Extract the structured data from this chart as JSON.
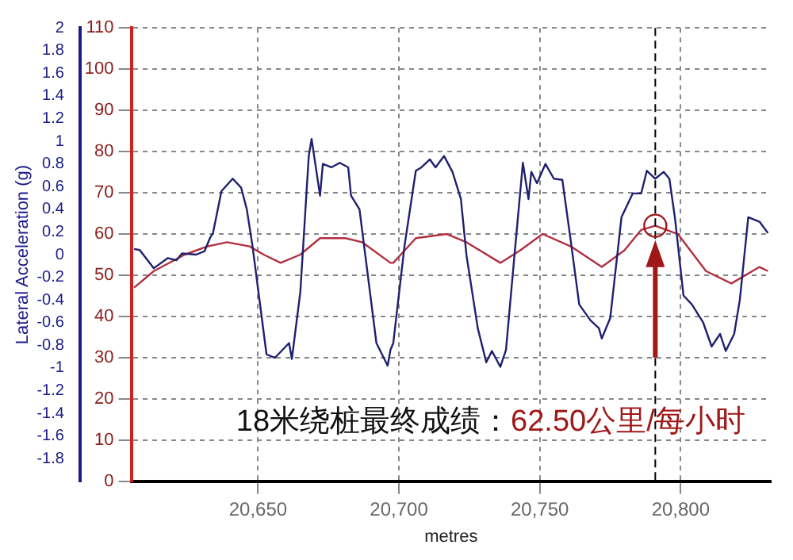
{
  "chart_data": {
    "type": "line",
    "xlabel": "metres",
    "ylabel": "Lateral Acceleration (g)",
    "xlim": [
      20605,
      20832
    ],
    "xticks": [
      {
        "value": 20650,
        "label": "20,650"
      },
      {
        "value": 20700,
        "label": "20,700"
      },
      {
        "value": 20750,
        "label": "20,750"
      },
      {
        "value": 20800,
        "label": "20,800"
      }
    ],
    "ylim": [
      -2,
      2
    ],
    "yticks": [
      -1.8,
      -1.6,
      -1.4,
      -1.2,
      -1,
      -0.8,
      -0.6,
      -0.4,
      -0.2,
      0,
      0.2,
      0.4,
      0.6,
      0.8,
      1,
      1.2,
      1.4,
      1.6,
      1.8,
      2
    ],
    "y2lim": [
      0,
      110
    ],
    "y2ticks": [
      0,
      10,
      20,
      30,
      40,
      50,
      60,
      70,
      80,
      90,
      100,
      110
    ],
    "grid": true,
    "legend": false,
    "marker": "none",
    "line_style": "solid",
    "series": [
      {
        "color": "#202070",
        "x": [
          20606,
          20608,
          20613,
          20618,
          20621,
          20623,
          20628,
          20631,
          20633,
          20634,
          20637,
          20641,
          20644,
          20646,
          20648,
          20653,
          20656,
          20661,
          20662,
          20665,
          20668,
          20669,
          20672,
          20673,
          20676,
          20679,
          20682,
          20683,
          20686,
          20689,
          20692,
          20694,
          20696,
          20697,
          20698,
          20702,
          20706,
          20708,
          20711,
          20713,
          20716,
          20719,
          20722,
          20724,
          20728,
          20731,
          20733,
          20736,
          20738,
          20741,
          20744,
          20746,
          20747,
          20749,
          20752,
          20755,
          20758,
          20761,
          20764,
          20768,
          20771,
          20772,
          20775,
          20779,
          20783,
          20786,
          20788,
          20791,
          20794,
          20796,
          20798,
          20801,
          20804,
          20808,
          20811,
          20814,
          20816,
          20819,
          20821,
          20824,
          20828,
          20831
        ],
        "values": [
          0.05,
          0.04,
          -0.12,
          -0.03,
          -0.05,
          0.01,
          0,
          0.03,
          0.15,
          0.19,
          0.56,
          0.67,
          0.59,
          0.4,
          0.08,
          -0.88,
          -0.91,
          -0.78,
          -0.92,
          -0.33,
          0.87,
          1.02,
          0.52,
          0.8,
          0.77,
          0.81,
          0.77,
          0.52,
          0.4,
          -0.19,
          -0.78,
          -0.88,
          -0.98,
          -0.84,
          -0.78,
          0.08,
          0.74,
          0.77,
          0.84,
          0.77,
          0.87,
          0.73,
          0.49,
          -0.01,
          -0.65,
          -0.95,
          -0.85,
          -0.99,
          -0.84,
          -0.01,
          0.81,
          0.49,
          0.73,
          0.63,
          0.8,
          0.67,
          0.66,
          0.12,
          -0.44,
          -0.58,
          -0.65,
          -0.74,
          -0.56,
          0.33,
          0.54,
          0.54,
          0.74,
          0.67,
          0.73,
          0.67,
          0.32,
          -0.36,
          -0.44,
          -0.6,
          -0.81,
          -0.7,
          -0.85,
          -0.7,
          -0.4,
          0.33,
          0.29,
          0.19
        ]
      },
      {
        "color": "#b03040",
        "axis": "y2",
        "x": [
          20606,
          20613,
          20624,
          20632,
          20639,
          20647,
          20652,
          20658,
          20665,
          20672,
          20681,
          20687,
          20697,
          20698,
          20706,
          20717,
          20724,
          20736,
          20743,
          20751,
          20761,
          20772,
          20780,
          20786,
          20791,
          20799,
          20809,
          20818,
          20828,
          20831
        ],
        "values": [
          47,
          51,
          55,
          57,
          58,
          57,
          55,
          53,
          55,
          59,
          59,
          58,
          53,
          53,
          59,
          60,
          58,
          53,
          56,
          60,
          57,
          52,
          56,
          61,
          62,
          60,
          51,
          48,
          52,
          51
        ]
      }
    ],
    "ref_lines": [
      {
        "axis": "x",
        "value": 20791,
        "color": "#000000",
        "line_style": "dashed"
      }
    ],
    "annotations": [
      "18米绕桩最终成绩：",
      "62.50公里/每小时"
    ]
  }
}
